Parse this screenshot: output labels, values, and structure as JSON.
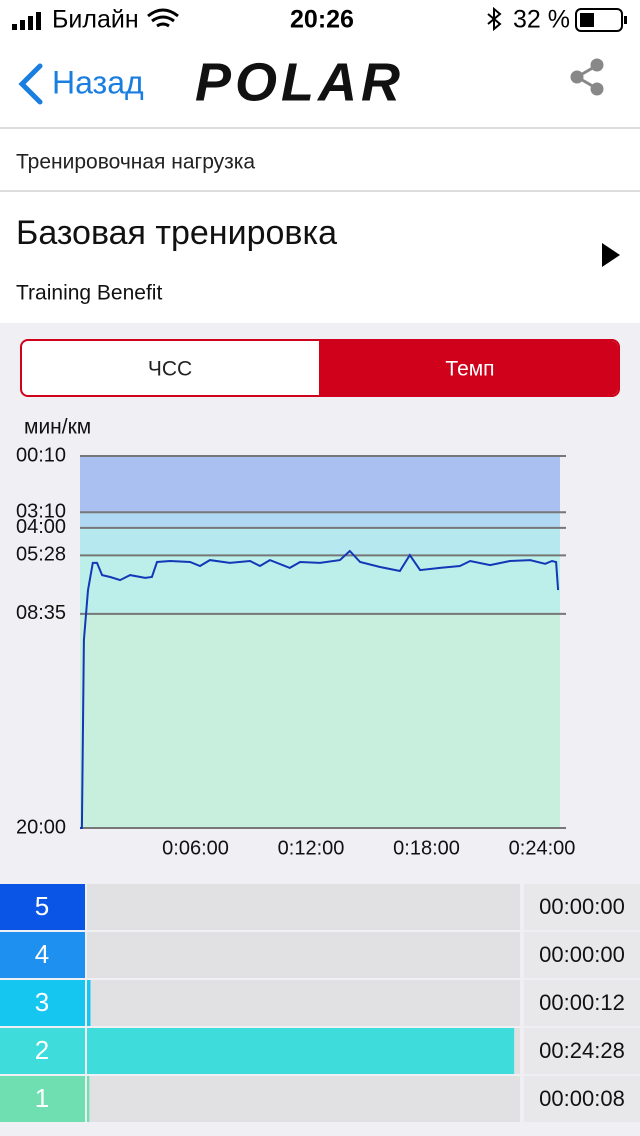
{
  "status_bar": {
    "carrier": "Билайн",
    "time": "20:26",
    "battery": "32 %"
  },
  "nav": {
    "back": "Назад",
    "logo": "POLAR"
  },
  "section": {
    "header": "Тренировочная нагрузка",
    "title": "Базовая тренировка",
    "subtitle": "Training Benefit"
  },
  "toggle": {
    "options": [
      "ЧСС",
      "Темп"
    ],
    "selected": 1
  },
  "chart_data": {
    "type": "line",
    "y_label": "мин/км",
    "color": "#1238b8",
    "x": [
      0,
      6,
      12,
      25,
      40,
      53,
      69,
      94,
      125,
      156,
      203,
      224,
      240,
      281,
      343,
      374,
      405,
      467,
      530,
      561,
      592,
      654,
      686,
      748,
      810,
      841,
      873,
      935,
      997,
      1028,
      1060,
      1122,
      1184,
      1216,
      1278,
      1340,
      1403,
      1450,
      1471,
      1484,
      1490
    ],
    "values": [
      1200,
      1200,
      599,
      439,
      352,
      352,
      391,
      397,
      407,
      391,
      400,
      397,
      349,
      346,
      349,
      362,
      343,
      352,
      346,
      362,
      343,
      368,
      349,
      352,
      343,
      314,
      349,
      365,
      378,
      327,
      375,
      368,
      362,
      346,
      359,
      346,
      343,
      355,
      346,
      349,
      439
    ],
    "xlim": [
      0,
      1496
    ],
    "ylim": [
      1200,
      10
    ],
    "xticks": [
      {
        "value": 360,
        "label": "0:06:00"
      },
      {
        "value": 720,
        "label": "0:12:00"
      },
      {
        "value": 1080,
        "label": "0:18:00"
      },
      {
        "value": 1440,
        "label": "0:24:00"
      }
    ],
    "yticks": [
      {
        "value": 10,
        "label": "00:10"
      },
      {
        "value": 190,
        "label": "03:10"
      },
      {
        "value": 240,
        "label": "04:00"
      },
      {
        "value": 328,
        "label": "05:28"
      },
      {
        "value": 515,
        "label": "08:35"
      },
      {
        "value": 1200,
        "label": "20:00"
      }
    ],
    "zone_colors": [
      "#a9c0f0",
      "#b0d8f2",
      "#b6e8f0",
      "#bcefe9",
      "#c8eedd"
    ],
    "grid": true
  },
  "zones": [
    {
      "zone": "5",
      "color": "#0a55e6",
      "time": {
        "value": 0,
        "label": "00:00:00"
      }
    },
    {
      "zone": "4",
      "color": "#1e90f0",
      "time": {
        "value": 0,
        "label": "00:00:00"
      }
    },
    {
      "zone": "3",
      "color": "#14c6f0",
      "time": {
        "value": 12,
        "label": "00:00:12"
      }
    },
    {
      "zone": "2",
      "color": "#3fdcdc",
      "time": {
        "value": 1468,
        "label": "00:24:28"
      }
    },
    {
      "zone": "1",
      "color": "#6fdfb2",
      "time": {
        "value": 8,
        "label": "00:00:08"
      }
    }
  ]
}
